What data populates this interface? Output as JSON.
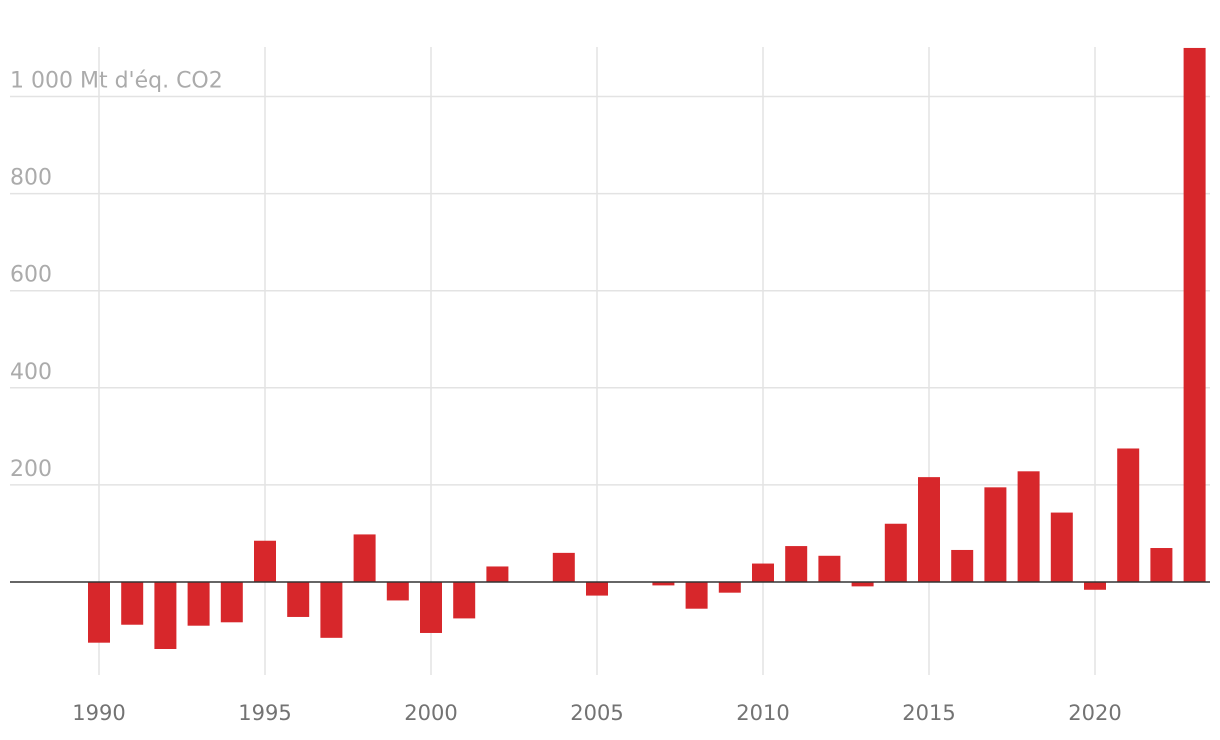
{
  "chart_data": {
    "type": "bar",
    "title": "",
    "xlabel": "",
    "ylabel": "",
    "y_unit": "Mt d'éq. CO2",
    "bar_color": "#d7272b",
    "grid": true,
    "grid_color": "#e3e3e3",
    "ylim": [
      -195,
      1100
    ],
    "xlim": [
      1989.5,
      2023.5
    ],
    "y_ticks": [
      {
        "value": 1000,
        "label": "1 000 Mt d'éq. CO2"
      },
      {
        "value": 800,
        "label": "800"
      },
      {
        "value": 600,
        "label": "600"
      },
      {
        "value": 400,
        "label": "400"
      },
      {
        "value": 200,
        "label": "200"
      }
    ],
    "x_ticks": [
      {
        "value": 1990,
        "label": "1990"
      },
      {
        "value": 1995,
        "label": "1995"
      },
      {
        "value": 2000,
        "label": "2000"
      },
      {
        "value": 2005,
        "label": "2005"
      },
      {
        "value": 2010,
        "label": "2010"
      },
      {
        "value": 2015,
        "label": "2015"
      },
      {
        "value": 2020,
        "label": "2020"
      }
    ],
    "years": [
      1990,
      1991,
      1992,
      1993,
      1994,
      1995,
      1996,
      1997,
      1998,
      1999,
      2000,
      2001,
      2002,
      2003,
      2004,
      2005,
      2006,
      2007,
      2008,
      2009,
      2010,
      2011,
      2012,
      2013,
      2014,
      2015,
      2016,
      2017,
      2018,
      2019,
      2020,
      2021,
      2022,
      2023
    ],
    "values": [
      -125,
      -88,
      -138,
      -90,
      -83,
      85,
      -72,
      -115,
      98,
      -38,
      -105,
      -75,
      32,
      0,
      60,
      -28,
      0,
      -7,
      -55,
      -22,
      38,
      74,
      54,
      -9,
      120,
      216,
      66,
      195,
      228,
      143,
      -16,
      275,
      70,
      1100
    ]
  }
}
